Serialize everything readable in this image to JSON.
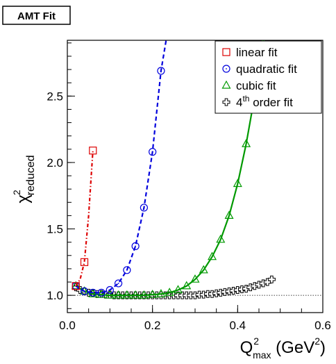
{
  "chart_data": {
    "type": "scatter",
    "badge": "AMT Fit",
    "xlabel": {
      "base": "Q",
      "sup": "2",
      "sub": "max",
      "unit_open": " (GeV",
      "unit_sup": "2",
      "unit_close": ")"
    },
    "ylabel": {
      "base": "χ",
      "sup": "2",
      "sub": "reduced"
    },
    "xlim": [
      0.0,
      0.6
    ],
    "ylim": [
      0.87,
      2.92
    ],
    "x_ticks": [
      {
        "value": 0.0,
        "label": "0.0"
      },
      {
        "value": 0.2,
        "label": "0.2"
      },
      {
        "value": 0.4,
        "label": "0.4"
      },
      {
        "value": 0.6,
        "label": "0.6"
      }
    ],
    "y_ticks": [
      {
        "value": 1.0,
        "label": "1.0"
      },
      {
        "value": 1.5,
        "label": "1.5"
      },
      {
        "value": 2.0,
        "label": "2.0"
      },
      {
        "value": 2.5,
        "label": "2.5"
      }
    ],
    "reference_line": 1.0,
    "legend_position": "top-right",
    "series": [
      {
        "name": "linear fit",
        "marker": "square",
        "color": "#dd0000",
        "line_style": "dashdot",
        "points": [
          [
            0.02,
            1.07
          ],
          [
            0.04,
            1.25
          ],
          [
            0.06,
            2.09
          ]
        ],
        "curve": [
          [
            0.02,
            1.07
          ],
          [
            0.03,
            1.12
          ],
          [
            0.04,
            1.25
          ],
          [
            0.05,
            1.6
          ],
          [
            0.06,
            2.09
          ]
        ]
      },
      {
        "name": "quadratic fit",
        "marker": "circle",
        "color": "#0000dd",
        "line_style": "dashed",
        "points": [
          [
            0.02,
            1.07
          ],
          [
            0.04,
            1.03
          ],
          [
            0.06,
            1.02
          ],
          [
            0.08,
            1.02
          ],
          [
            0.1,
            1.04
          ],
          [
            0.12,
            1.09
          ],
          [
            0.14,
            1.19
          ],
          [
            0.16,
            1.37
          ],
          [
            0.18,
            1.66
          ],
          [
            0.2,
            2.08
          ],
          [
            0.22,
            2.69
          ]
        ],
        "curve": [
          [
            0.02,
            1.07
          ],
          [
            0.04,
            1.03
          ],
          [
            0.06,
            1.02
          ],
          [
            0.08,
            1.02
          ],
          [
            0.1,
            1.04
          ],
          [
            0.12,
            1.09
          ],
          [
            0.14,
            1.19
          ],
          [
            0.16,
            1.37
          ],
          [
            0.18,
            1.66
          ],
          [
            0.2,
            2.08
          ],
          [
            0.22,
            2.69
          ],
          [
            0.232,
            2.92
          ]
        ]
      },
      {
        "name": "cubic fit",
        "marker": "triangle",
        "color": "#009900",
        "line_style": "solid",
        "points": [
          [
            0.02,
            1.07
          ],
          [
            0.04,
            1.03
          ],
          [
            0.06,
            1.01
          ],
          [
            0.08,
            1.005
          ],
          [
            0.1,
            1.0
          ],
          [
            0.12,
            1.0
          ],
          [
            0.14,
            1.0
          ],
          [
            0.16,
            1.0
          ],
          [
            0.18,
            1.0
          ],
          [
            0.2,
            1.005
          ],
          [
            0.22,
            1.01
          ],
          [
            0.24,
            1.02
          ],
          [
            0.26,
            1.04
          ],
          [
            0.28,
            1.07
          ],
          [
            0.3,
            1.12
          ],
          [
            0.32,
            1.19
          ],
          [
            0.34,
            1.29
          ],
          [
            0.36,
            1.42
          ],
          [
            0.38,
            1.6
          ],
          [
            0.4,
            1.84
          ],
          [
            0.42,
            2.14
          ],
          [
            0.44,
            2.5
          ],
          [
            0.46,
            2.9
          ]
        ],
        "curve": [
          [
            0.02,
            1.07
          ],
          [
            0.04,
            1.03
          ],
          [
            0.06,
            1.01
          ],
          [
            0.08,
            1.005
          ],
          [
            0.1,
            1.0
          ],
          [
            0.12,
            1.0
          ],
          [
            0.14,
            1.0
          ],
          [
            0.16,
            1.0
          ],
          [
            0.18,
            1.0
          ],
          [
            0.2,
            1.005
          ],
          [
            0.22,
            1.01
          ],
          [
            0.24,
            1.02
          ],
          [
            0.26,
            1.04
          ],
          [
            0.28,
            1.07
          ],
          [
            0.3,
            1.12
          ],
          [
            0.32,
            1.19
          ],
          [
            0.34,
            1.29
          ],
          [
            0.36,
            1.42
          ],
          [
            0.38,
            1.6
          ],
          [
            0.4,
            1.84
          ],
          [
            0.42,
            2.14
          ],
          [
            0.44,
            2.5
          ],
          [
            0.46,
            2.9
          ]
        ]
      },
      {
        "name": "4th order fit",
        "name_prefix": "4",
        "name_sup": "th",
        "name_suffix": " order fit",
        "marker": "cross",
        "color": "#000000",
        "line_style": "none",
        "points": [
          [
            0.02,
            1.06
          ],
          [
            0.03,
            1.04
          ],
          [
            0.04,
            1.03
          ],
          [
            0.05,
            1.02
          ],
          [
            0.06,
            1.015
          ],
          [
            0.07,
            1.01
          ],
          [
            0.08,
            1.01
          ],
          [
            0.09,
            1.005
          ],
          [
            0.1,
            1.005
          ],
          [
            0.11,
            1.0
          ],
          [
            0.12,
            1.0
          ],
          [
            0.13,
            1.0
          ],
          [
            0.14,
            1.0
          ],
          [
            0.15,
            1.0
          ],
          [
            0.16,
            1.0
          ],
          [
            0.17,
            1.0
          ],
          [
            0.18,
            1.0
          ],
          [
            0.19,
            1.0
          ],
          [
            0.2,
            1.0
          ],
          [
            0.21,
            1.0
          ],
          [
            0.22,
            1.0
          ],
          [
            0.23,
            1.0
          ],
          [
            0.24,
            1.0
          ],
          [
            0.25,
            1.0
          ],
          [
            0.26,
            1.0
          ],
          [
            0.27,
            1.0
          ],
          [
            0.28,
            1.0
          ],
          [
            0.29,
            1.0
          ],
          [
            0.3,
            1.0
          ],
          [
            0.31,
            1.005
          ],
          [
            0.32,
            1.005
          ],
          [
            0.33,
            1.01
          ],
          [
            0.34,
            1.01
          ],
          [
            0.35,
            1.015
          ],
          [
            0.36,
            1.02
          ],
          [
            0.37,
            1.025
          ],
          [
            0.38,
            1.03
          ],
          [
            0.39,
            1.035
          ],
          [
            0.4,
            1.04
          ],
          [
            0.41,
            1.045
          ],
          [
            0.42,
            1.05
          ],
          [
            0.43,
            1.06
          ],
          [
            0.44,
            1.07
          ],
          [
            0.45,
            1.08
          ],
          [
            0.46,
            1.09
          ],
          [
            0.47,
            1.1
          ],
          [
            0.48,
            1.12
          ]
        ]
      }
    ]
  }
}
